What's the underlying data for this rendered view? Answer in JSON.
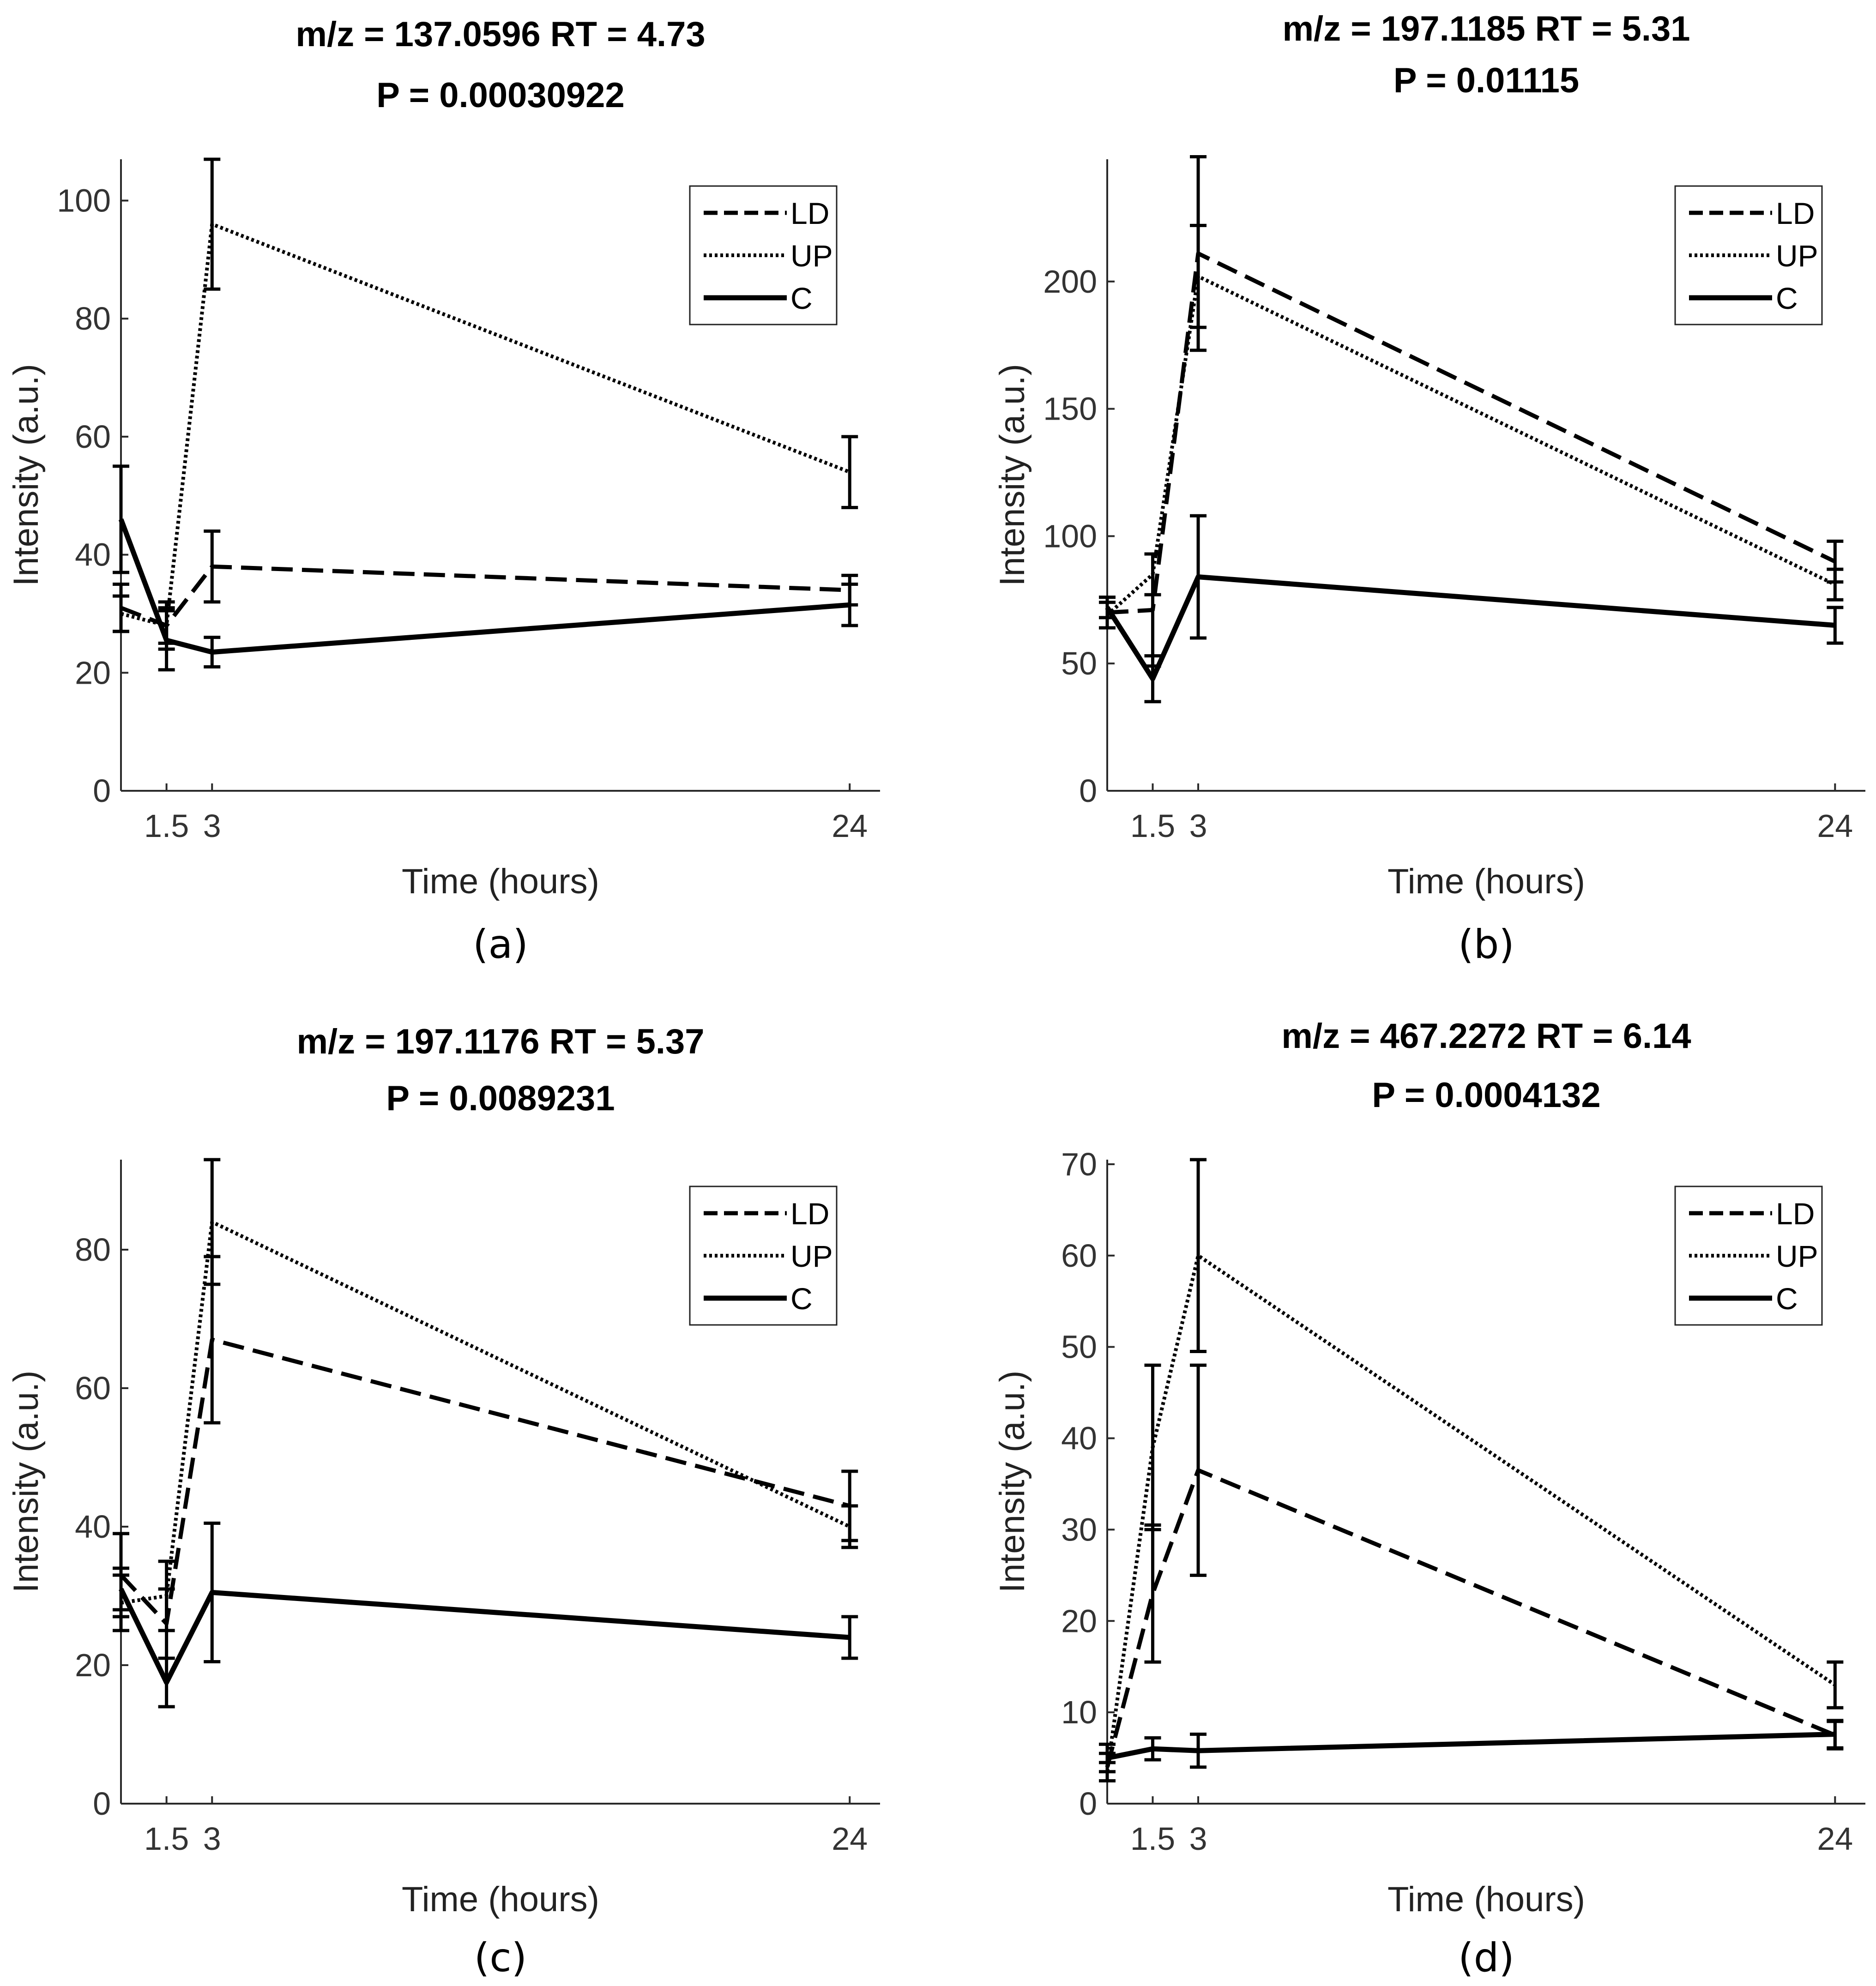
{
  "figure": {
    "caption_note": ""
  },
  "legend_entries": [
    "LD",
    "UP",
    "C"
  ],
  "chart_data": [
    {
      "type": "line",
      "panel": "(a)",
      "title": "m/z = 137.0596 RT = 4.73",
      "subtitle": "P = 0.00030922",
      "xlabel": "Time (hours)",
      "ylabel": "Intensity (a.u.)",
      "x": [
        0,
        1.5,
        3,
        24
      ],
      "xticks": [
        1.5,
        3,
        24
      ],
      "xlim": [
        0,
        25
      ],
      "ylim": [
        0,
        107
      ],
      "yticks": [
        0,
        20,
        40,
        60,
        80,
        100
      ],
      "legend": "top-right",
      "series": [
        {
          "name": "LD",
          "style": "dashed",
          "values": [
            31,
            28,
            38,
            34
          ],
          "errors": [
            4,
            4,
            6,
            2.5
          ]
        },
        {
          "name": "UP",
          "style": "dotted",
          "values": [
            30,
            28,
            96,
            54
          ],
          "errors": [
            3,
            3,
            11,
            6
          ]
        },
        {
          "name": "C",
          "style": "solid",
          "values": [
            46,
            25.5,
            23.5,
            31.5
          ],
          "errors": [
            9,
            5,
            2.5,
            3.5
          ]
        }
      ]
    },
    {
      "type": "line",
      "panel": "(b)",
      "title": "m/z = 197.1185 RT = 5.31",
      "subtitle": "P = 0.01115",
      "xlabel": "Time (hours)",
      "ylabel": "Intensity (a.u.)",
      "x": [
        0,
        1.5,
        3,
        24
      ],
      "xticks": [
        1.5,
        3,
        24
      ],
      "xlim": [
        0,
        25
      ],
      "ylim": [
        0,
        248
      ],
      "yticks": [
        0,
        50,
        100,
        150,
        200
      ],
      "legend": "top-right",
      "series": [
        {
          "name": "LD",
          "style": "dashed",
          "values": [
            70,
            71,
            211,
            90
          ],
          "errors": [
            6,
            22,
            38,
            8
          ]
        },
        {
          "name": "UP",
          "style": "dotted",
          "values": [
            69,
            85,
            202,
            81
          ],
          "errors": [
            5,
            8,
            20,
            6
          ]
        },
        {
          "name": "C",
          "style": "solid",
          "values": [
            72,
            44,
            84,
            65
          ],
          "errors": [
            4,
            9,
            24,
            7
          ]
        }
      ]
    },
    {
      "type": "line",
      "panel": "(c)",
      "title": "m/z = 197.1176 RT = 5.37",
      "subtitle": "P = 0.0089231",
      "xlabel": "Time (hours)",
      "ylabel": "Intensity (a.u.)",
      "x": [
        0,
        1.5,
        3,
        24
      ],
      "xticks": [
        1.5,
        3,
        24
      ],
      "xlim": [
        0,
        25
      ],
      "ylim": [
        0,
        93
      ],
      "yticks": [
        0,
        20,
        40,
        60,
        80
      ],
      "legend": "top-right",
      "series": [
        {
          "name": "LD",
          "style": "dashed",
          "values": [
            33,
            26,
            67,
            43
          ],
          "errors": [
            6,
            5,
            12,
            5
          ]
        },
        {
          "name": "UP",
          "style": "dotted",
          "values": [
            29,
            30,
            84,
            40
          ],
          "errors": [
            4,
            5,
            9,
            3
          ]
        },
        {
          "name": "C",
          "style": "solid",
          "values": [
            31,
            17.5,
            30.5,
            24
          ],
          "errors": [
            3,
            3.5,
            10,
            3
          ]
        }
      ]
    },
    {
      "type": "line",
      "panel": "(d)",
      "title": "m/z = 467.2272 RT = 6.14",
      "subtitle": "P = 0.0004132",
      "xlabel": "Time (hours)",
      "ylabel": "Intensity (a.u.)",
      "x": [
        0,
        1.5,
        3,
        24
      ],
      "xticks": [
        1.5,
        3,
        24
      ],
      "xlim": [
        0,
        25
      ],
      "ylim": [
        0,
        70.5
      ],
      "yticks": [
        0,
        10,
        20,
        30,
        40,
        50,
        60,
        70
      ],
      "legend": "top-right",
      "series": [
        {
          "name": "LD",
          "style": "dashed",
          "values": [
            4,
            23,
            36.5,
            7.5
          ],
          "errors": [
            1.5,
            7.5,
            11.5,
            1.5
          ]
        },
        {
          "name": "UP",
          "style": "dotted",
          "values": [
            3.5,
            39,
            60,
            13
          ],
          "errors": [
            1,
            9,
            10.5,
            2.5
          ]
        },
        {
          "name": "C",
          "style": "solid",
          "values": [
            5,
            6,
            5.8,
            7.6
          ],
          "errors": [
            1.5,
            1.2,
            1.8,
            1.5
          ]
        }
      ]
    }
  ]
}
